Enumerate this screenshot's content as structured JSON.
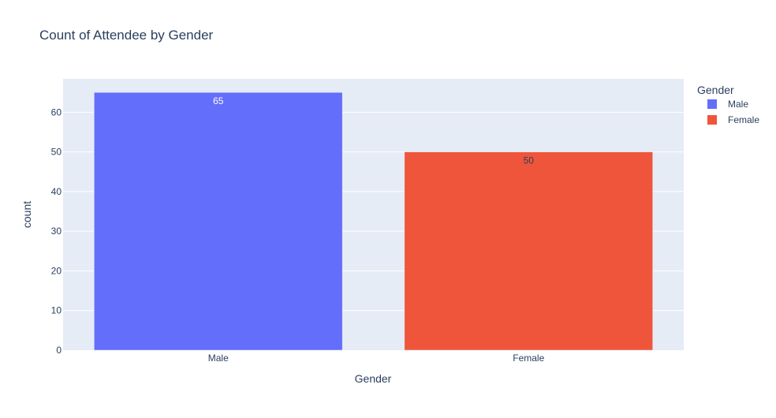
{
  "chart_data": {
    "type": "bar",
    "title": "Count of Attendee by Gender",
    "xlabel": "Gender",
    "ylabel": "count",
    "categories": [
      "Male",
      "Female"
    ],
    "values": [
      65,
      50
    ],
    "ylim": [
      0,
      68.42
    ],
    "yticks": [
      0,
      10,
      20,
      30,
      40,
      50,
      60
    ],
    "grid": true,
    "legend": {
      "title": "Gender",
      "placement": "top-right",
      "entries": [
        "Male",
        "Female"
      ]
    },
    "colors": {
      "Male": "#636efa",
      "Female": "#ef553b",
      "plot_background": "#e5ecf6",
      "gridline": "#ffffff",
      "text": "#2a3f5f"
    },
    "data_labels": [
      "65",
      "50"
    ],
    "data_label_colors": [
      "#ffffff",
      "#2a3f5f"
    ]
  }
}
